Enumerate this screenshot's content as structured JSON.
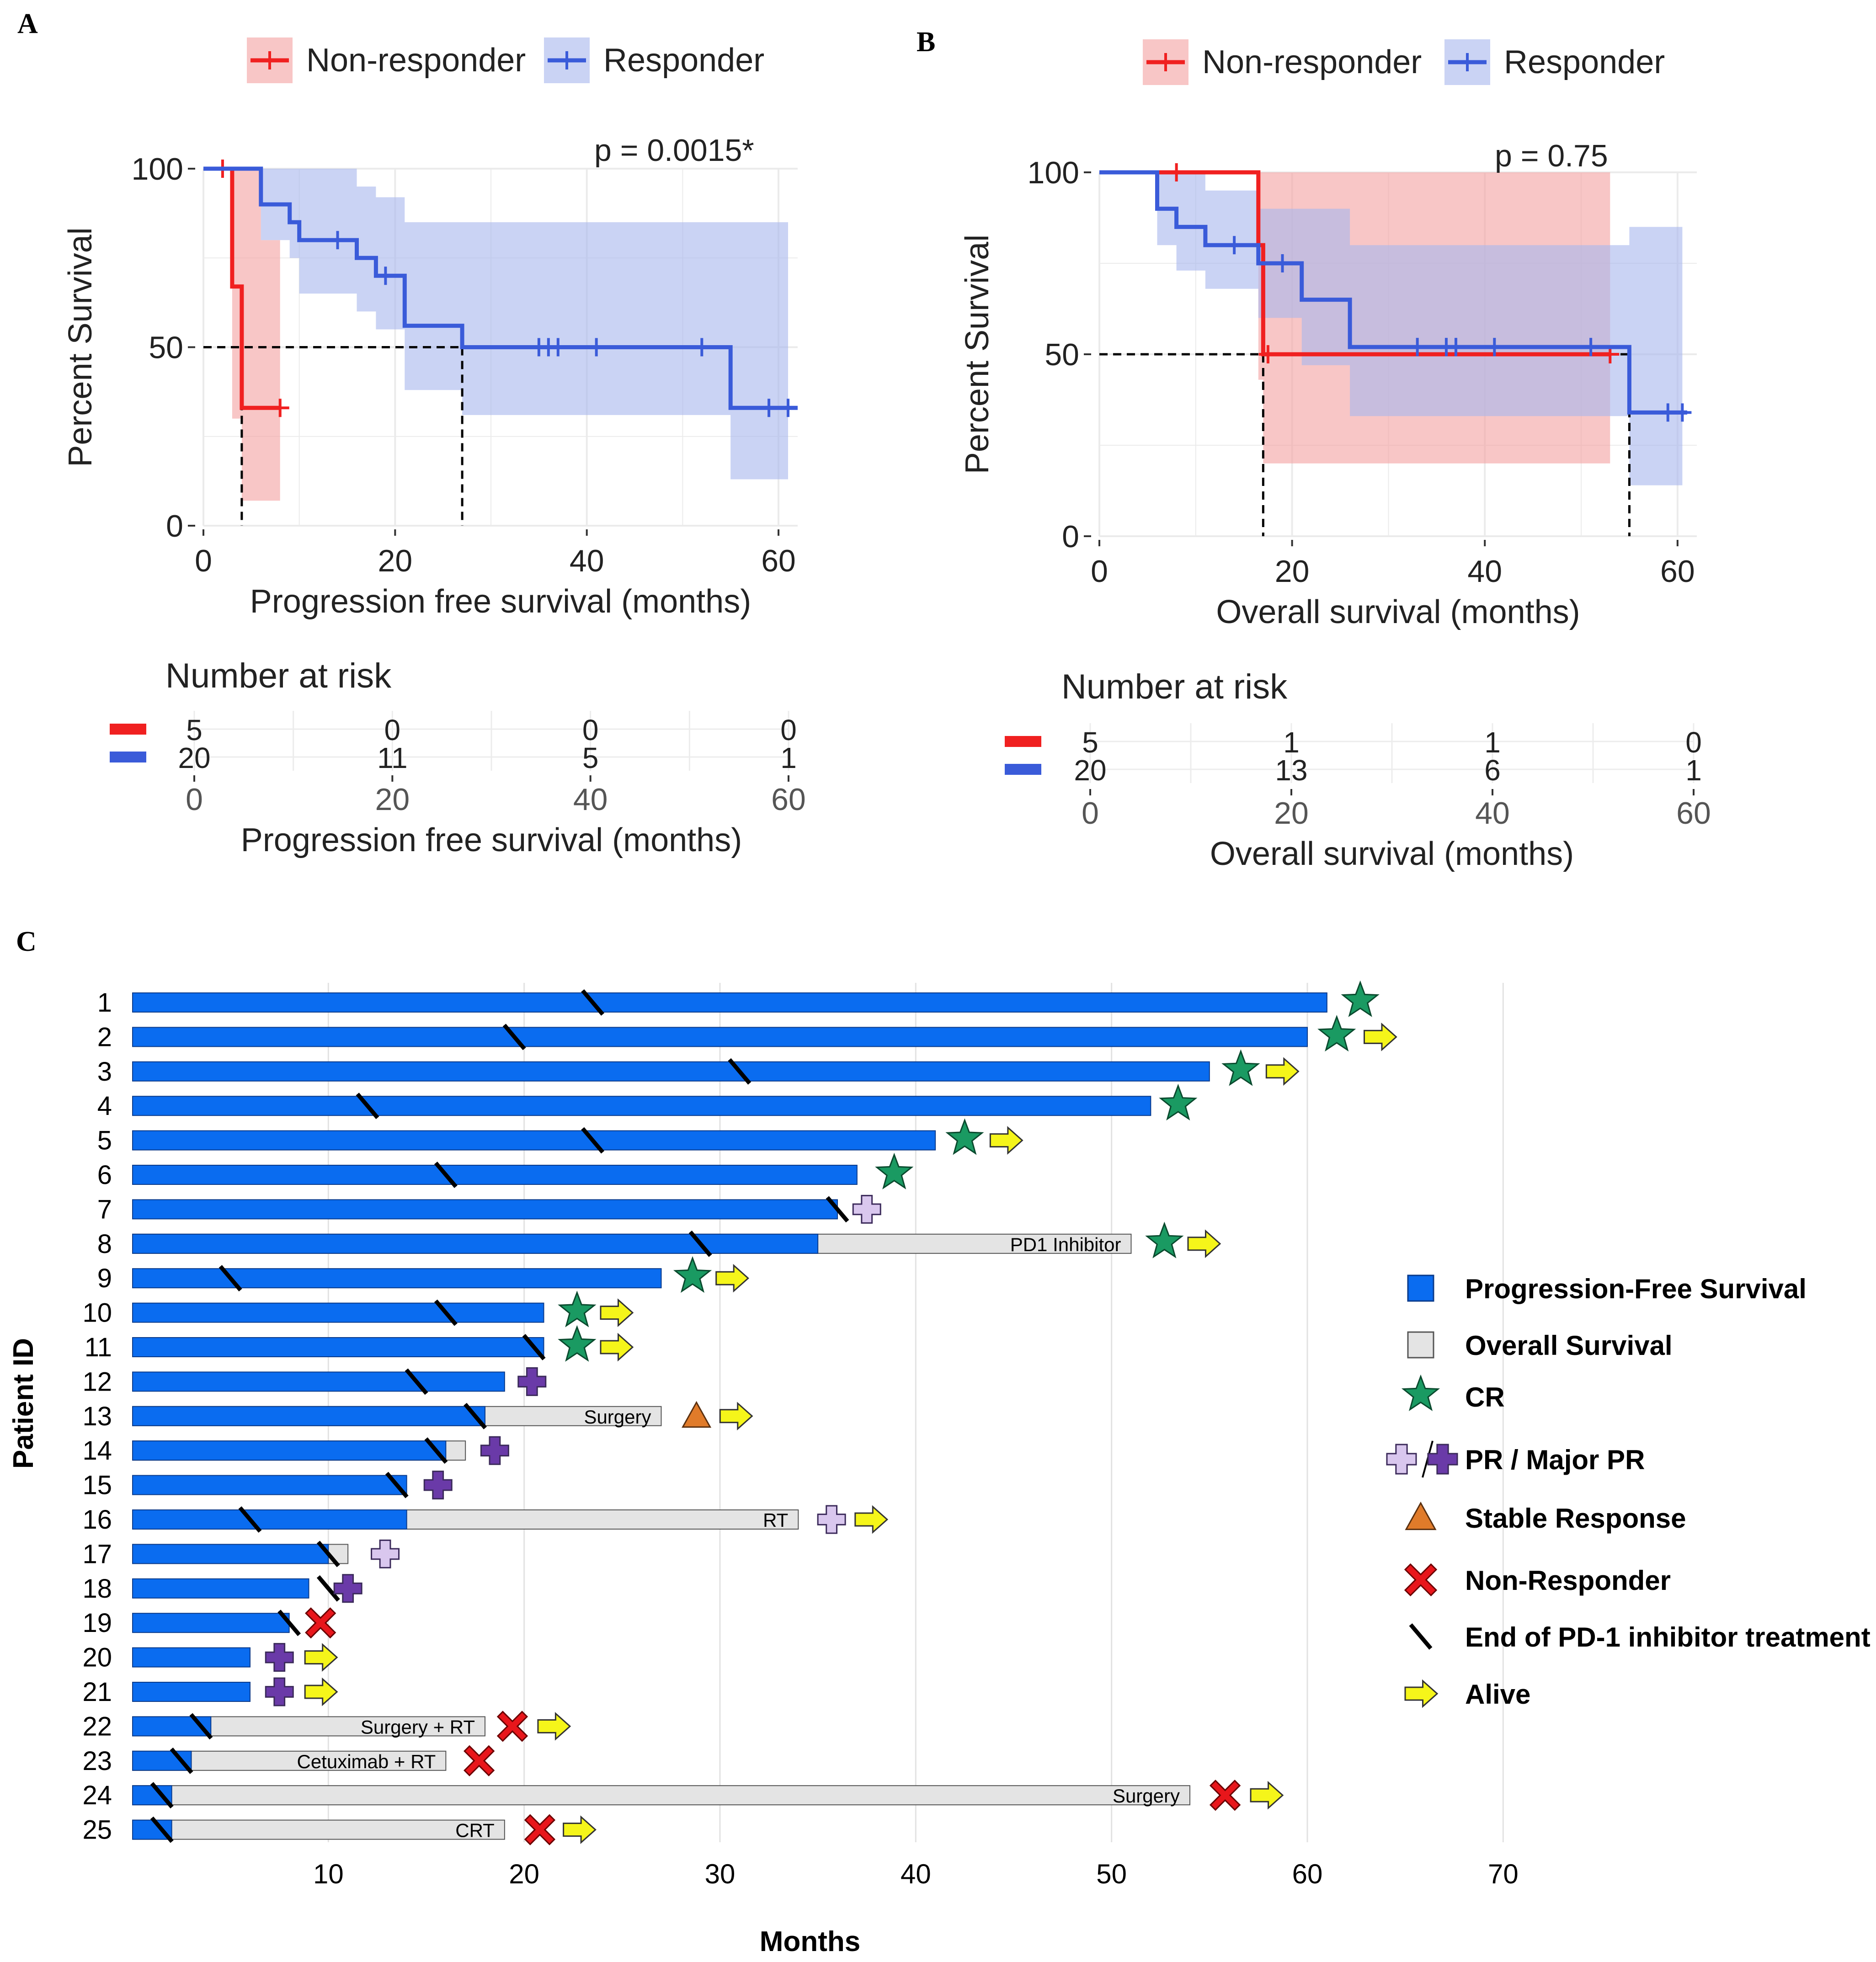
{
  "figure": {
    "panels": [
      {
        "id": "A",
        "letter": "A"
      },
      {
        "id": "B",
        "letter": "B"
      },
      {
        "id": "C",
        "letter": "C"
      }
    ]
  },
  "colors": {
    "nonresponder": "#f02020",
    "responder": "#3a5bd9",
    "nonresponder_ci": "#f4a3a3",
    "responder_ci": "#aab8ee",
    "pfs_bar": "#0a6cf0",
    "os_bar": "#e4e4e4",
    "cr_star": "#1a9a62",
    "pr_light": "#d9c7ee",
    "pr_major": "#6a3aa8",
    "stable": "#e07b2a",
    "nonresp_x": "#e8161b",
    "alive_arrow": "#f5f51a"
  },
  "chart_data": [
    {
      "panel": "A",
      "type": "line",
      "subtype": "kaplan-meier",
      "xlabel": "Progression free survival (months)",
      "ylabel": "Percent Survival",
      "xlim": [
        0,
        62
      ],
      "ylim": [
        0,
        100
      ],
      "xticks": [
        "0",
        "20",
        "40",
        "60"
      ],
      "xtick_values": [
        0,
        20,
        40,
        60
      ],
      "yticks": [
        "0",
        "50",
        "100"
      ],
      "ytick_values": [
        0,
        50,
        100
      ],
      "pvalue": "p = 0.0015*",
      "legend": {
        "placement": "top",
        "entries": [
          "Non-responder",
          "Responder"
        ]
      },
      "median_lines": [
        {
          "x": 4,
          "y": 50
        },
        {
          "x": 27,
          "y": 50
        }
      ],
      "series": [
        {
          "name": "Non-responder",
          "color_key": "nonresponder",
          "steps": [
            [
              0,
              100
            ],
            [
              3,
              100
            ],
            [
              3,
              67
            ],
            [
              4,
              67
            ],
            [
              4,
              33
            ],
            [
              8,
              33
            ]
          ],
          "censor_marks": [
            [
              2,
              100
            ],
            [
              8,
              33
            ]
          ],
          "ci": [
            [
              2.2,
              100,
              100
            ],
            [
              3,
              100,
              100
            ],
            [
              3,
              30,
              100
            ],
            [
              4,
              30,
              100
            ],
            [
              4,
              7,
              100
            ],
            [
              6,
              7,
              100
            ],
            [
              6,
              7,
              80
            ],
            [
              8,
              7,
              80
            ]
          ]
        },
        {
          "name": "Responder",
          "color_key": "responder",
          "steps": [
            [
              0,
              100
            ],
            [
              6,
              100
            ],
            [
              6,
              90
            ],
            [
              9,
              90
            ],
            [
              9,
              85
            ],
            [
              10,
              85
            ],
            [
              10,
              80
            ],
            [
              16,
              80
            ],
            [
              16,
              75
            ],
            [
              18,
              75
            ],
            [
              18,
              70
            ],
            [
              21,
              70
            ],
            [
              21,
              56
            ],
            [
              27,
              56
            ],
            [
              27,
              50
            ],
            [
              55,
              50
            ],
            [
              55,
              33
            ],
            [
              62,
              33
            ]
          ],
          "censor_marks": [
            [
              14,
              80
            ],
            [
              19,
              70
            ],
            [
              35,
              50
            ],
            [
              36,
              50
            ],
            [
              37,
              50
            ],
            [
              41,
              50
            ],
            [
              52,
              50
            ],
            [
              59,
              33
            ],
            [
              61,
              33
            ]
          ],
          "ci": [
            [
              6,
              80,
              100
            ],
            [
              9,
              75,
              100
            ],
            [
              10,
              65,
              100
            ],
            [
              16,
              60,
              95
            ],
            [
              18,
              55,
              92
            ],
            [
              21,
              38,
              85
            ],
            [
              27,
              31,
              85
            ],
            [
              55,
              13,
              85
            ],
            [
              61,
              13,
              85
            ]
          ]
        }
      ],
      "risk_table": {
        "title": "Number at risk",
        "xlabel": "Progression free survival (months)",
        "times": [
          0,
          20,
          40,
          60
        ],
        "rows": [
          {
            "name": "Non-responder",
            "color_key": "nonresponder",
            "values": [
              "5",
              "0",
              "0",
              "0"
            ]
          },
          {
            "name": "Responder",
            "color_key": "responder",
            "values": [
              "20",
              "11",
              "5",
              "1"
            ]
          }
        ],
        "xticks": [
          "0",
          "20",
          "40",
          "60"
        ]
      }
    },
    {
      "panel": "B",
      "type": "line",
      "subtype": "kaplan-meier",
      "xlabel": "Overall survival (months)",
      "ylabel": "Percent Survival",
      "xlim": [
        0,
        62
      ],
      "ylim": [
        0,
        100
      ],
      "xticks": [
        "0",
        "20",
        "40",
        "60"
      ],
      "xtick_values": [
        0,
        20,
        40,
        60
      ],
      "yticks": [
        "0",
        "50",
        "100"
      ],
      "ytick_values": [
        0,
        50,
        100
      ],
      "pvalue": "p = 0.75",
      "legend": {
        "placement": "top",
        "entries": [
          "Non-responder",
          "Responder"
        ]
      },
      "median_lines": [
        {
          "x": 17,
          "y": 50
        },
        {
          "x": 55,
          "y": 50
        }
      ],
      "series": [
        {
          "name": "Non-responder",
          "color_key": "nonresponder",
          "steps": [
            [
              0,
              100
            ],
            [
              16.5,
              100
            ],
            [
              16.5,
              80
            ],
            [
              17,
              80
            ],
            [
              17,
              50
            ],
            [
              53,
              50
            ]
          ],
          "censor_marks": [
            [
              8,
              100
            ],
            [
              17.5,
              50
            ],
            [
              53,
              50
            ]
          ],
          "ci": [
            [
              16,
              100,
              100
            ],
            [
              16.5,
              43,
              100
            ],
            [
              17,
              20,
              100
            ],
            [
              53,
              20,
              100
            ]
          ]
        },
        {
          "name": "Responder",
          "color_key": "responder",
          "steps": [
            [
              0,
              100
            ],
            [
              6,
              100
            ],
            [
              6,
              90
            ],
            [
              8,
              90
            ],
            [
              8,
              85
            ],
            [
              11,
              85
            ],
            [
              11,
              80
            ],
            [
              16.5,
              80
            ],
            [
              16.5,
              75
            ],
            [
              21,
              75
            ],
            [
              21,
              65
            ],
            [
              26,
              65
            ],
            [
              26,
              52
            ],
            [
              55,
              52
            ],
            [
              55,
              34
            ],
            [
              61,
              34
            ]
          ],
          "censor_marks": [
            [
              14,
              80
            ],
            [
              19,
              75
            ],
            [
              33,
              52
            ],
            [
              36,
              52
            ],
            [
              37,
              52
            ],
            [
              41,
              52
            ],
            [
              51,
              52
            ],
            [
              59,
              34
            ],
            [
              60.5,
              34
            ]
          ],
          "ci": [
            [
              6,
              80,
              100
            ],
            [
              8,
              73,
              100
            ],
            [
              11,
              68,
              95
            ],
            [
              16.5,
              60,
              90
            ],
            [
              21,
              47,
              90
            ],
            [
              26,
              33,
              80
            ],
            [
              55,
              14,
              85
            ],
            [
              60.5,
              14,
              85
            ]
          ]
        }
      ],
      "risk_table": {
        "title": "Number at risk",
        "xlabel": "Overall survival (months)",
        "times": [
          0,
          20,
          40,
          60
        ],
        "rows": [
          {
            "name": "Non-responder",
            "color_key": "nonresponder",
            "values": [
              "5",
              "1",
              "1",
              "0"
            ]
          },
          {
            "name": "Responder",
            "color_key": "responder",
            "values": [
              "20",
              "13",
              "6",
              "1"
            ]
          }
        ],
        "xticks": [
          "0",
          "20",
          "40",
          "60"
        ]
      }
    },
    {
      "panel": "C",
      "type": "bar",
      "subtype": "swimmer-plot",
      "xlabel": "Months",
      "ylabel": "Patient ID",
      "xlim": [
        0,
        70
      ],
      "xticks": [
        "10",
        "20",
        "30",
        "40",
        "50",
        "60",
        "70"
      ],
      "xtick_values": [
        10,
        20,
        30,
        40,
        50,
        60,
        70
      ],
      "legend": {
        "placement": "right",
        "entries": [
          {
            "symbol": "pfs",
            "label": "Progression-Free Survival"
          },
          {
            "symbol": "os",
            "label": "Overall Survival"
          },
          {
            "symbol": "cr",
            "label": "CR"
          },
          {
            "symbol": "pr-pair",
            "label": "PR / Major PR"
          },
          {
            "symbol": "stable",
            "label": "Stable Response"
          },
          {
            "symbol": "nonresp",
            "label": "Non-Responder"
          },
          {
            "symbol": "endtx",
            "label": "End of PD-1 inhibitor treatment"
          },
          {
            "symbol": "alive",
            "label": "Alive"
          }
        ]
      },
      "patients": [
        {
          "id": "1",
          "pfs": 61,
          "os": null,
          "end_tx": 23.5,
          "response": "cr",
          "response_at": 62.7,
          "alive_at": null,
          "os_label": ""
        },
        {
          "id": "2",
          "pfs": 60,
          "os": null,
          "end_tx": 19.5,
          "response": "cr",
          "response_at": 61.5,
          "alive_at": 63.7,
          "os_label": ""
        },
        {
          "id": "3",
          "pfs": 55,
          "os": null,
          "end_tx": 31,
          "response": "cr",
          "response_at": 56.6,
          "alive_at": 58.7,
          "os_label": ""
        },
        {
          "id": "4",
          "pfs": 52,
          "os": null,
          "end_tx": 12,
          "response": "cr",
          "response_at": 53.4,
          "alive_at": null,
          "os_label": ""
        },
        {
          "id": "5",
          "pfs": 41,
          "os": null,
          "end_tx": 23.5,
          "response": "cr",
          "response_at": 42.5,
          "alive_at": 44.6,
          "os_label": ""
        },
        {
          "id": "6",
          "pfs": 37,
          "os": null,
          "end_tx": 16,
          "response": "cr",
          "response_at": 38.9,
          "alive_at": null,
          "os_label": ""
        },
        {
          "id": "7",
          "pfs": 36,
          "os": null,
          "end_tx": 36,
          "response": "pr",
          "response_at": 37.5,
          "alive_at": null,
          "os_label": ""
        },
        {
          "id": "8",
          "pfs": 35,
          "os": 51,
          "end_tx": 29,
          "response": "cr",
          "response_at": 52.7,
          "alive_at": 54.7,
          "os_label": "PD1 Inhibitor"
        },
        {
          "id": "9",
          "pfs": 27,
          "os": null,
          "end_tx": 5,
          "response": "cr",
          "response_at": 28.6,
          "alive_at": 30.6,
          "os_label": ""
        },
        {
          "id": "10",
          "pfs": 21,
          "os": null,
          "end_tx": 16,
          "response": "cr",
          "response_at": 22.7,
          "alive_at": 24.7,
          "os_label": ""
        },
        {
          "id": "11",
          "pfs": 21,
          "os": null,
          "end_tx": 20.5,
          "response": "cr",
          "response_at": 22.7,
          "alive_at": 24.7,
          "os_label": ""
        },
        {
          "id": "12",
          "pfs": 19,
          "os": null,
          "end_tx": 14.5,
          "response": "major_pr",
          "response_at": 20.4,
          "alive_at": null,
          "os_label": ""
        },
        {
          "id": "13",
          "pfs": 18,
          "os": 27,
          "end_tx": 17.5,
          "response": "stable",
          "response_at": 28.8,
          "alive_at": 30.8,
          "os_label": "Surgery"
        },
        {
          "id": "14",
          "pfs": 16,
          "os": 17,
          "end_tx": 15.5,
          "response": "major_pr",
          "response_at": 18.5,
          "alive_at": null,
          "os_label": ""
        },
        {
          "id": "15",
          "pfs": 14,
          "os": null,
          "end_tx": 13.5,
          "response": "major_pr",
          "response_at": 15.6,
          "alive_at": null,
          "os_label": ""
        },
        {
          "id": "16",
          "pfs": 14,
          "os": 34,
          "end_tx": 6,
          "response": "pr",
          "response_at": 35.7,
          "alive_at": 37.7,
          "os_label": "RT"
        },
        {
          "id": "17",
          "pfs": 10,
          "os": 11,
          "end_tx": 10,
          "response": "pr",
          "response_at": 12.9,
          "alive_at": null,
          "os_label": ""
        },
        {
          "id": "18",
          "pfs": 9,
          "os": null,
          "end_tx": 10,
          "response": "major_pr",
          "response_at": 11,
          "alive_at": null,
          "os_label": ""
        },
        {
          "id": "19",
          "pfs": 8,
          "os": null,
          "end_tx": 8,
          "response": "nonresp",
          "response_at": 9.6,
          "alive_at": null,
          "os_label": ""
        },
        {
          "id": "20",
          "pfs": 6,
          "os": null,
          "end_tx": null,
          "response": "major_pr",
          "response_at": 7.5,
          "alive_at": 9.6,
          "os_label": ""
        },
        {
          "id": "21",
          "pfs": 6,
          "os": null,
          "end_tx": null,
          "response": "major_pr",
          "response_at": 7.5,
          "alive_at": 9.6,
          "os_label": ""
        },
        {
          "id": "22",
          "pfs": 4,
          "os": 18,
          "end_tx": 3.5,
          "response": "nonresp",
          "response_at": 19.4,
          "alive_at": 21.5,
          "os_label": "Surgery + RT"
        },
        {
          "id": "23",
          "pfs": 3,
          "os": 16,
          "end_tx": 2.5,
          "response": "nonresp",
          "response_at": 17.7,
          "alive_at": null,
          "os_label": "Cetuximab + RT"
        },
        {
          "id": "24",
          "pfs": 2,
          "os": 54,
          "end_tx": 1.5,
          "response": "nonresp",
          "response_at": 55.8,
          "alive_at": 57.9,
          "os_label": "Surgery"
        },
        {
          "id": "25",
          "pfs": 2,
          "os": 19,
          "end_tx": 1.5,
          "response": "nonresp",
          "response_at": 20.8,
          "alive_at": 22.8,
          "os_label": "CRT"
        }
      ]
    }
  ]
}
